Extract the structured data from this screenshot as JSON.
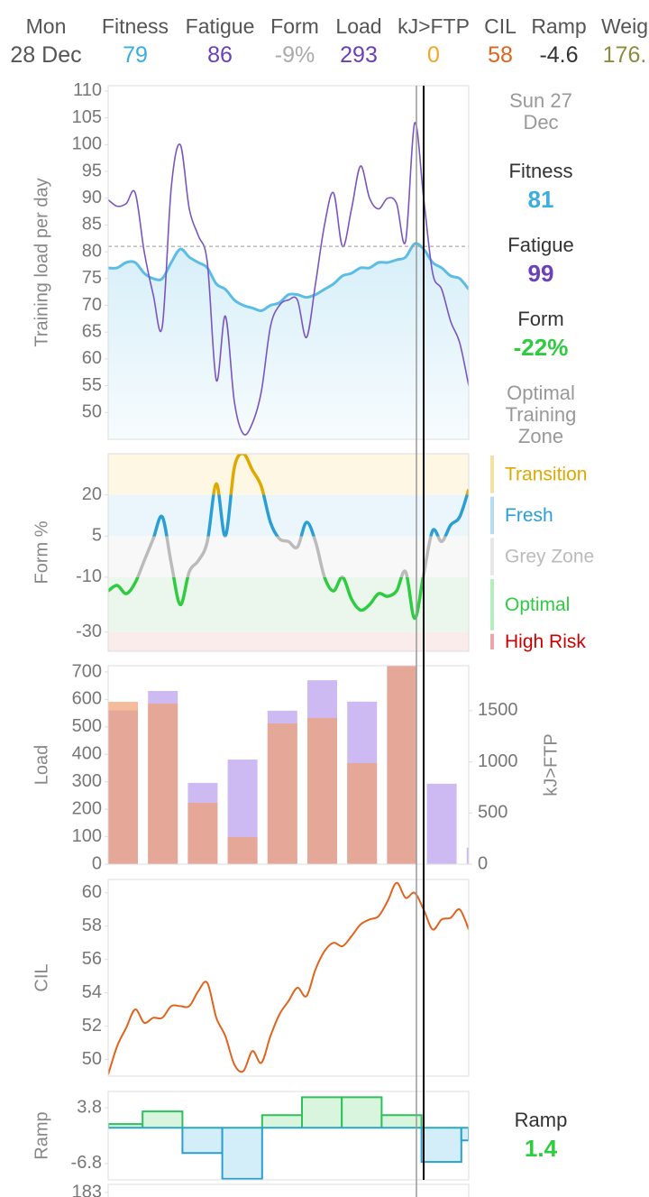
{
  "header": {
    "columns": [
      {
        "label": "Mon",
        "value": "28 Dec",
        "color": "#555555"
      },
      {
        "label": "Fitness",
        "value": "79",
        "color": "#3aaee0"
      },
      {
        "label": "Fatigue",
        "value": "86",
        "color": "#6b40b8"
      },
      {
        "label": "Form",
        "value": "-9%",
        "color": "#aaaaaa"
      },
      {
        "label": "Load",
        "value": "293",
        "color": "#6b40b8"
      },
      {
        "label": "kJ>FTP",
        "value": "0",
        "color": "#f5a623"
      },
      {
        "label": "CIL",
        "value": "58",
        "color": "#e0641e"
      },
      {
        "label": "Ramp",
        "value": "-4.6",
        "color": "#333333"
      },
      {
        "label": "Weig",
        "value": "176.",
        "color": "#8c8c3c"
      }
    ]
  },
  "side_panel": {
    "date": "Sun 27 Dec",
    "fitness": {
      "label": "Fitness",
      "value": 81,
      "color": "#3aaee0"
    },
    "fatigue": {
      "label": "Fatigue",
      "value": 99,
      "color": "#6b40b8"
    },
    "form": {
      "label": "Form",
      "value": -22,
      "value_label": "-22%",
      "color": "#2ecc40"
    },
    "zone": "Optimal Training Zone",
    "ramp": {
      "label": "Ramp",
      "value": 1.4,
      "color": "#2ecc40"
    }
  },
  "chart_data": [
    {
      "type": "line",
      "ylabel": "Training load per day",
      "ylim": [
        45,
        111
      ],
      "yticks": [
        50,
        55,
        60,
        65,
        70,
        75,
        80,
        85,
        90,
        95,
        100,
        105,
        110
      ],
      "series": [
        {
          "color": "#5bbde6",
          "fill": true,
          "values": [
            77,
            77,
            78,
            78,
            76,
            75,
            75,
            78,
            80.5,
            79,
            78,
            77,
            74,
            73,
            71,
            70,
            69.5,
            69,
            70,
            70.5,
            72,
            72,
            71.5,
            72,
            73,
            74,
            75.5,
            76,
            77,
            77,
            78,
            78,
            78.5,
            79,
            81.5,
            80.5,
            78,
            77,
            75.5,
            75,
            73
          ]
        },
        {
          "color": "#7a55c2",
          "values": [
            89.7,
            88.5,
            89,
            91,
            80,
            72,
            66,
            92,
            100,
            88,
            83,
            78,
            56,
            68,
            52,
            46,
            48,
            54,
            66,
            70,
            71,
            71,
            64,
            74,
            85,
            91,
            81,
            88,
            96,
            90,
            88,
            90,
            89,
            82,
            104,
            90,
            76,
            73,
            67,
            63,
            55
          ]
        }
      ]
    },
    {
      "type": "line",
      "ylabel": "Form %",
      "ylim": [
        -37,
        35
      ],
      "yticks": [
        20,
        5,
        -10,
        -30
      ],
      "zones": [
        {
          "name": "Transition",
          "color": "#e0a800",
          "band_color": "#fdf7e4"
        },
        {
          "name": "Fresh",
          "color": "#2a9fd6",
          "band_color": "#ebf6fc"
        },
        {
          "name": "Grey Zone",
          "color": "#bbbbbb",
          "band_color": "#f8f8f8"
        },
        {
          "name": "Optimal",
          "color": "#2ecc40",
          "band_color": "#ebf7ec"
        },
        {
          "name": "High Risk",
          "color": "#cc0000",
          "band_color": "#fbecec"
        }
      ],
      "series": [
        {
          "values": [
            -15,
            -13,
            -16,
            -12,
            -4,
            4,
            12,
            -5,
            -20,
            -8,
            -4,
            3,
            24,
            5,
            30,
            35,
            29,
            23,
            10,
            4,
            3,
            1,
            10,
            3,
            -10,
            -15,
            -10,
            -18,
            -22,
            -20,
            -16,
            -17,
            -15,
            -8,
            -25,
            -9,
            7,
            3,
            9,
            12,
            22
          ]
        }
      ]
    },
    {
      "type": "bar",
      "ylabel": "Load",
      "y2label": "kJ>FTP",
      "ylim": [
        0,
        723
      ],
      "yticks": [
        0,
        100,
        200,
        300,
        400,
        500,
        600,
        700
      ],
      "y2lim": [
        0,
        1940
      ],
      "y2ticks": [
        0,
        500,
        1000,
        1500
      ],
      "series": [
        {
          "color": "#cdbaf2",
          "values": [
            560,
            631,
            296,
            381,
            559,
            670,
            592,
            740,
            293,
            60
          ]
        },
        {
          "color": "#f0a070",
          "axis": "y2",
          "values": [
            1587,
            1570,
            600,
            265,
            1376,
            1429,
            988,
            1950,
            0,
            0
          ]
        }
      ]
    },
    {
      "type": "line",
      "ylabel": "CIL",
      "ylim": [
        49,
        60.8
      ],
      "yticks": [
        50,
        52,
        54,
        56,
        58,
        60
      ],
      "series": [
        {
          "color": "#e0641e",
          "values": [
            49.1,
            50.8,
            51.9,
            53,
            52.2,
            52.5,
            52.5,
            53.2,
            53.2,
            53.2,
            54.1,
            54.6,
            52.5,
            51.4,
            49.7,
            49.3,
            50.5,
            49.8,
            51.4,
            52.7,
            53.5,
            54.3,
            53.8,
            55.4,
            56.5,
            57,
            56.8,
            57.4,
            58.1,
            58.4,
            58.6,
            59.5,
            60.6,
            59.7,
            60,
            59,
            57.8,
            58.4,
            58.5,
            59,
            57.8
          ]
        }
      ]
    },
    {
      "type": "step",
      "ylabel": "Ramp",
      "ylim": [
        -9.9,
        6.9
      ],
      "yticks": [
        3.8,
        -6.8
      ],
      "color_positive": "#2ec05a",
      "fill_positive": "#d9f5de",
      "color_negative": "#2aa0d0",
      "fill_negative": "#d4eef9",
      "zero_color": "#2aa8c0",
      "values": [
        0.7,
        3.1,
        -4.8,
        -9.7,
        2.4,
        5.8,
        5.8,
        2.4,
        -6.5,
        -2.4
      ]
    },
    {
      "type": "area",
      "yticks": [
        183
      ]
    }
  ]
}
